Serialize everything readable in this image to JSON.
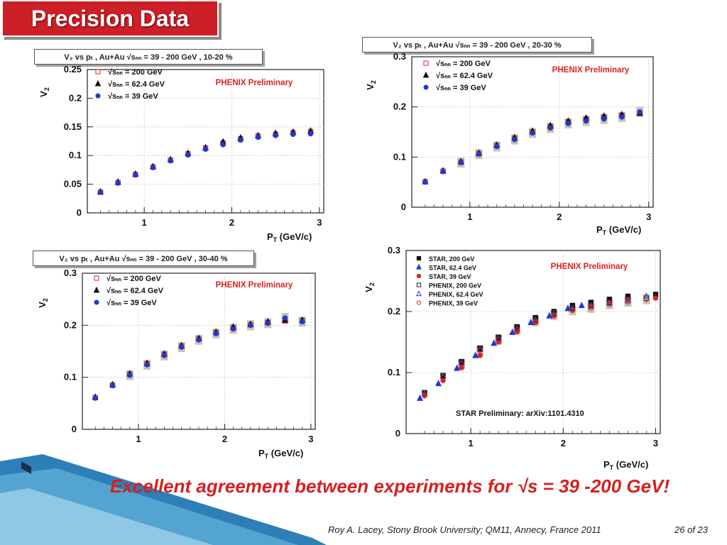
{
  "slide_title": "Precision Data",
  "bottom_statement": "Excellent agreement between experiments for √s = 39 -200 GeV!",
  "footer": "Roy A. Lacey, Stony Brook University; QM11, Annecy, France 2011",
  "page_number": "26 of 23",
  "colors": {
    "title_bg": "#cc1f27",
    "accent_red": "#d62020",
    "phenix_label": "#e02020",
    "band": "#b7b290",
    "deco_blue": "#3a8fc4"
  },
  "chart_data": [
    {
      "type": "scatter",
      "header": "V₂ vs pₜ , Au+Au  √sₙₙ = 39 - 200 GeV , 10-20 %",
      "annotation": "PHENIX Preliminary",
      "xlabel": "Pₜ (GeV/c)",
      "ylabel": "V₂",
      "xlim": [
        0.35,
        3.05
      ],
      "ylim": [
        0,
        0.25
      ],
      "xticks": [
        "1",
        "2",
        "3"
      ],
      "xtick_values": [
        1,
        2,
        3
      ],
      "yticks": [
        "0",
        "0.05",
        "0.1",
        "0.15",
        "0.2",
        "0.25"
      ],
      "ytick_values": [
        0,
        0.05,
        0.1,
        0.15,
        0.2,
        0.25
      ],
      "legend_position": "top-left",
      "series": [
        {
          "name": "√sₙₙ = 200 GeV",
          "marker": "open-square",
          "color": "#dd2222",
          "x": [
            0.5,
            0.7,
            0.9,
            1.1,
            1.3,
            1.5,
            1.7,
            1.9,
            2.1,
            2.3,
            2.5,
            2.7,
            2.9
          ],
          "y": [
            0.036,
            0.053,
            0.067,
            0.08,
            0.092,
            0.103,
            0.113,
            0.122,
            0.129,
            0.134,
            0.137,
            0.14,
            0.142
          ]
        },
        {
          "name": "√sₙₙ = 62.4  GeV",
          "marker": "filled-triangle",
          "color": "#111111",
          "x": [
            0.5,
            0.7,
            0.9,
            1.1,
            1.3,
            1.5,
            1.7,
            1.9,
            2.1,
            2.3,
            2.5,
            2.7,
            2.9
          ],
          "y": [
            0.037,
            0.054,
            0.068,
            0.081,
            0.093,
            0.104,
            0.114,
            0.124,
            0.131,
            0.135,
            0.139,
            0.141,
            0.143
          ]
        },
        {
          "name": "√sₙₙ = 39  GeV",
          "marker": "filled-circle",
          "color": "#1a3ad6",
          "x": [
            0.5,
            0.7,
            0.9,
            1.1,
            1.3,
            1.5,
            1.7,
            1.9,
            2.1,
            2.3,
            2.5,
            2.7,
            2.9
          ],
          "y": [
            0.036,
            0.052,
            0.066,
            0.079,
            0.091,
            0.101,
            0.111,
            0.119,
            0.127,
            0.132,
            0.135,
            0.137,
            0.138
          ]
        }
      ]
    },
    {
      "type": "scatter",
      "header": "V₂ vs pₜ , Au+Au  √sₙₙ = 39 - 200 GeV , 20-30 %",
      "annotation": "PHENIX Preliminary",
      "xlabel": "Pₜ (GeV/c)",
      "ylabel": "V₂",
      "xlim": [
        0.35,
        3.05
      ],
      "ylim": [
        0,
        0.3
      ],
      "xticks": [
        "1",
        "2",
        "3"
      ],
      "xtick_values": [
        1,
        2,
        3
      ],
      "yticks": [
        "0",
        "0.1",
        "0.2",
        "0.3"
      ],
      "ytick_values": [
        0,
        0.1,
        0.2,
        0.3
      ],
      "legend_position": "top-left",
      "series": [
        {
          "name": "√sₙₙ = 200 GeV",
          "marker": "open-square",
          "color": "#dd2222",
          "x": [
            0.5,
            0.7,
            0.9,
            1.1,
            1.3,
            1.5,
            1.7,
            1.9,
            2.1,
            2.3,
            2.5,
            2.7,
            2.9
          ],
          "y": [
            0.051,
            0.072,
            0.09,
            0.107,
            0.123,
            0.138,
            0.15,
            0.161,
            0.17,
            0.176,
            0.18,
            0.183,
            0.187
          ]
        },
        {
          "name": "√sₙₙ = 62.4  GeV",
          "marker": "filled-triangle",
          "color": "#111111",
          "x": [
            0.5,
            0.7,
            0.9,
            1.1,
            1.3,
            1.5,
            1.7,
            1.9,
            2.1,
            2.3,
            2.5,
            2.7,
            2.9
          ],
          "y": [
            0.051,
            0.073,
            0.091,
            0.108,
            0.124,
            0.139,
            0.152,
            0.163,
            0.172,
            0.178,
            0.182,
            0.185,
            0.188
          ]
        },
        {
          "name": "√sₙₙ = 39  GeV",
          "marker": "filled-circle",
          "color": "#1a3ad6",
          "x": [
            0.5,
            0.7,
            0.9,
            1.1,
            1.3,
            1.5,
            1.7,
            1.9,
            2.1,
            2.3,
            2.5,
            2.7,
            2.9
          ],
          "y": [
            0.05,
            0.071,
            0.089,
            0.106,
            0.121,
            0.135,
            0.148,
            0.158,
            0.167,
            0.172,
            0.176,
            0.18,
            0.19
          ]
        }
      ]
    },
    {
      "type": "scatter",
      "header": "V₂ vs pₜ , Au+Au  √sₙₙ = 39 - 200 GeV , 30-40 %",
      "annotation": "PHENIX Preliminary",
      "xlabel": "Pₜ (GeV/c)",
      "ylabel": "V₂",
      "xlim": [
        0.35,
        3.05
      ],
      "ylim": [
        0,
        0.3
      ],
      "xticks": [
        "1",
        "2",
        "3"
      ],
      "xtick_values": [
        1,
        2,
        3
      ],
      "yticks": [
        "0",
        "0.1",
        "0.2",
        "0.3"
      ],
      "ytick_values": [
        0,
        0.1,
        0.2,
        0.3
      ],
      "legend_position": "top-left",
      "series": [
        {
          "name": "√sₙₙ = 200 GeV",
          "marker": "open-square",
          "color": "#dd2222",
          "x": [
            0.5,
            0.7,
            0.9,
            1.1,
            1.3,
            1.5,
            1.7,
            1.9,
            2.1,
            2.3,
            2.5,
            2.7,
            2.9
          ],
          "y": [
            0.061,
            0.085,
            0.106,
            0.126,
            0.144,
            0.16,
            0.174,
            0.186,
            0.195,
            0.201,
            0.205,
            0.208,
            0.209
          ]
        },
        {
          "name": "√sₙₙ = 62.4  GeV",
          "marker": "filled-triangle",
          "color": "#111111",
          "x": [
            0.5,
            0.7,
            0.9,
            1.1,
            1.3,
            1.5,
            1.7,
            1.9,
            2.1,
            2.3,
            2.5,
            2.7,
            2.9
          ],
          "y": [
            0.062,
            0.086,
            0.107,
            0.127,
            0.145,
            0.161,
            0.175,
            0.187,
            0.197,
            0.202,
            0.207,
            0.21,
            0.21
          ]
        },
        {
          "name": "√sₙₙ = 39  GeV",
          "marker": "filled-circle",
          "color": "#1a3ad6",
          "x": [
            0.5,
            0.7,
            0.9,
            1.1,
            1.3,
            1.5,
            1.7,
            1.9,
            2.1,
            2.3,
            2.5,
            2.7,
            2.9
          ],
          "y": [
            0.06,
            0.084,
            0.104,
            0.124,
            0.142,
            0.158,
            0.172,
            0.184,
            0.193,
            0.2,
            0.204,
            0.214,
            0.207
          ]
        }
      ]
    },
    {
      "type": "scatter",
      "annotation": "PHENIX Preliminary",
      "note": "STAR Preliminary: arXiv:1101.4310",
      "xlabel": "Pₜ (GeV/c)",
      "ylabel": "V₂",
      "xlim": [
        0.3,
        3.05
      ],
      "ylim": [
        0,
        0.3
      ],
      "xticks": [
        "1",
        "2",
        "3"
      ],
      "xtick_values": [
        1,
        2,
        3
      ],
      "yticks": [
        "0",
        "0.1",
        "0.2",
        "0.3"
      ],
      "ytick_values": [
        0,
        0.1,
        0.2,
        0.3
      ],
      "legend_position": "top-left",
      "series": [
        {
          "name": "STAR,  200 GeV",
          "marker": "filled-square",
          "color": "#111111",
          "x": [
            0.5,
            0.7,
            0.9,
            1.1,
            1.3,
            1.5,
            1.7,
            1.9,
            2.1,
            2.3,
            2.5,
            2.7,
            3.0
          ],
          "y": [
            0.067,
            0.095,
            0.118,
            0.14,
            0.158,
            0.175,
            0.19,
            0.2,
            0.21,
            0.215,
            0.22,
            0.225,
            0.228
          ]
        },
        {
          "name": "STAR, 62.4  GeV",
          "marker": "filled-triangle",
          "color": "#1a3ad6",
          "x": [
            0.45,
            0.65,
            0.85,
            1.05,
            1.25,
            1.45,
            1.65,
            1.85,
            2.05,
            2.2
          ],
          "y": [
            0.058,
            0.082,
            0.107,
            0.128,
            0.148,
            0.166,
            0.182,
            0.193,
            0.205,
            0.21
          ]
        },
        {
          "name": "STAR, 39  GeV",
          "marker": "filled-circle",
          "color": "#dd2222",
          "x": [
            0.5,
            0.7,
            0.9,
            1.1,
            1.3,
            1.5,
            1.7,
            1.9,
            2.1,
            2.3,
            2.5,
            2.7,
            3.0
          ],
          "y": [
            0.062,
            0.087,
            0.108,
            0.128,
            0.15,
            0.167,
            0.182,
            0.193,
            0.203,
            0.21,
            0.215,
            0.22,
            0.222
          ]
        },
        {
          "name": "PHENIX,  200 GeV",
          "marker": "open-square",
          "color": "#222222",
          "x": [
            0.5,
            0.7,
            0.9,
            1.1,
            1.3,
            1.5,
            1.7,
            1.9,
            2.1,
            2.3,
            2.5,
            2.7,
            2.9
          ],
          "y": [
            0.066,
            0.095,
            0.117,
            0.139,
            0.157,
            0.173,
            0.187,
            0.198,
            0.206,
            0.21,
            0.215,
            0.22,
            0.222
          ]
        },
        {
          "name": "PHENIX, 62.4  GeV",
          "marker": "open-triangle",
          "color": "#2244cc",
          "x": [
            0.5,
            0.7,
            0.9,
            1.1,
            1.3,
            1.5,
            1.7,
            1.9,
            2.1,
            2.3,
            2.5,
            2.7,
            2.9
          ],
          "y": [
            0.066,
            0.094,
            0.116,
            0.138,
            0.156,
            0.172,
            0.186,
            0.197,
            0.205,
            0.209,
            0.214,
            0.218,
            0.225
          ]
        },
        {
          "name": "PHENIX, 39  GeV",
          "marker": "open-circle",
          "color": "#dd2222",
          "x": [
            0.5,
            0.7,
            0.9,
            1.1,
            1.3,
            1.5,
            1.7,
            1.9,
            2.1,
            2.3,
            2.5,
            2.7,
            2.9
          ],
          "y": [
            0.064,
            0.092,
            0.114,
            0.136,
            0.154,
            0.17,
            0.184,
            0.194,
            0.202,
            0.206,
            0.212,
            0.216,
            0.22
          ]
        }
      ]
    }
  ]
}
